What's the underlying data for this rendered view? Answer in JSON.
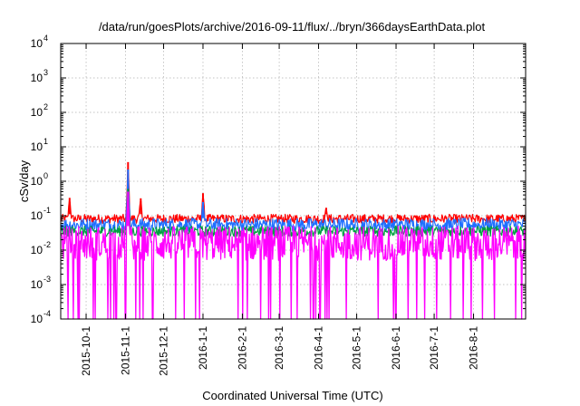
{
  "chart_data": {
    "type": "line",
    "title": "/data/run/goesPlots/archive/2016-09-11/flux/../bryn/366daysEarthData.plot",
    "xlabel": "Coordinated Universal Time (UTC)",
    "ylabel": "cSv/day",
    "y_scale": "log",
    "ylim": [
      0.0001,
      10000
    ],
    "y_ticks": [
      {
        "value": 0.0001,
        "base": "10",
        "exp": "-4"
      },
      {
        "value": 0.001,
        "base": "10",
        "exp": "-3"
      },
      {
        "value": 0.01,
        "base": "10",
        "exp": "-2"
      },
      {
        "value": 0.1,
        "base": "10",
        "exp": "-1"
      },
      {
        "value": 1,
        "base": "10",
        "exp": "0"
      },
      {
        "value": 10,
        "base": "10",
        "exp": "1"
      },
      {
        "value": 100,
        "base": "10",
        "exp": "2"
      },
      {
        "value": 1000,
        "base": "10",
        "exp": "3"
      },
      {
        "value": 10000,
        "base": "10",
        "exp": "4"
      }
    ],
    "xlim": [
      "2015-09-11",
      "2016-09-11"
    ],
    "x_ticks": [
      "2015-10-1",
      "2015-11-1",
      "2015-12-1",
      "2016-1-1",
      "2016-2-1",
      "2016-3-1",
      "2016-4-1",
      "2016-5-1",
      "2016-6-1",
      "2016-7-1",
      "2016-8-1"
    ],
    "grid": true,
    "series": [
      {
        "color": "#ff0000",
        "baseline_range": [
          0.06,
          0.11
        ],
        "peaks": [
          {
            "x": "2015-09-18",
            "y": 0.33
          },
          {
            "x": "2015-11-03",
            "y": 3.6
          },
          {
            "x": "2015-11-13",
            "y": 0.32
          },
          {
            "x": "2016-01-01",
            "y": 0.45
          },
          {
            "x": "2016-04-07",
            "y": 0.17
          }
        ]
      },
      {
        "color": "#1f6fff",
        "baseline_range": [
          0.035,
          0.085
        ],
        "peaks": [
          {
            "x": "2015-11-03",
            "y": 2.2
          },
          {
            "x": "2016-01-01",
            "y": 0.25
          }
        ]
      },
      {
        "color": "#00a040",
        "baseline_range": [
          0.025,
          0.05
        ],
        "peaks": [
          {
            "x": "2015-11-03",
            "y": 0.6
          }
        ]
      },
      {
        "color": "#ff00ff",
        "baseline_range": [
          0.005,
          0.05
        ],
        "min_dips": 0.0001,
        "peaks": [
          {
            "x": "2015-11-03",
            "y": 0.5
          }
        ]
      }
    ]
  }
}
